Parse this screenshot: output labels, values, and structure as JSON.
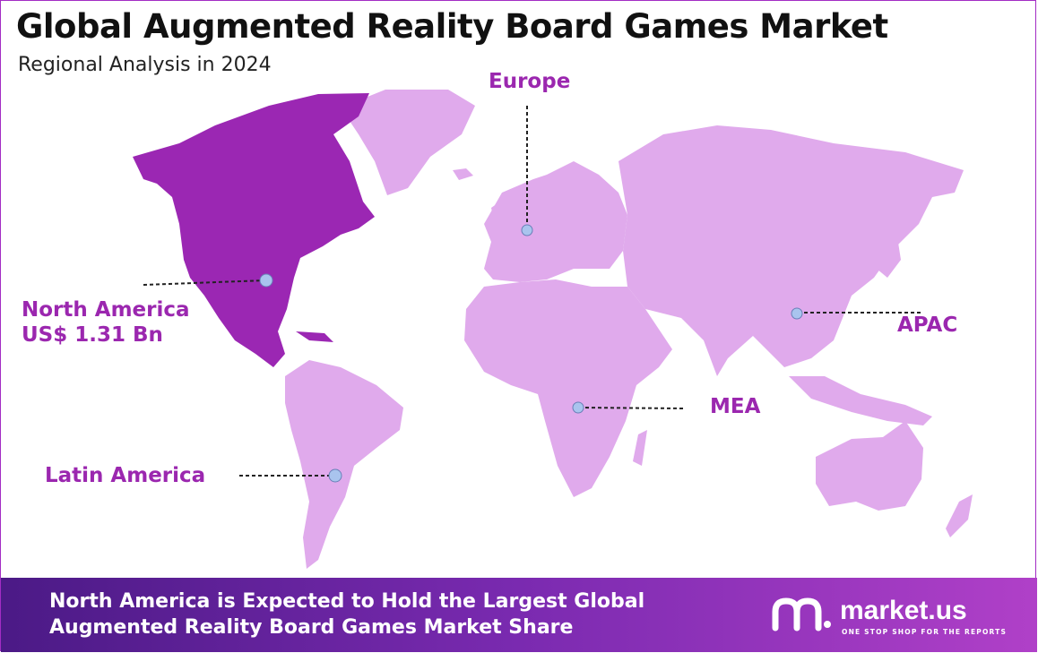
{
  "title": "Global Augmented Reality Board Games Market",
  "subtitle": "Regional Analysis in 2024",
  "colors": {
    "highlight_region": "#9b27b3",
    "other_regions": "#e0aaec",
    "label_text": "#9b27af",
    "marker": "#a9c4ee"
  },
  "regions": {
    "europe": {
      "label": "Europe"
    },
    "north_america": {
      "label": "North America",
      "value": "US$ 1.31 Bn"
    },
    "apac": {
      "label": "APAC"
    },
    "mea": {
      "label": "MEA"
    },
    "latin_america": {
      "label": "Latin America"
    }
  },
  "footer": {
    "line1": "North America is Expected to Hold the Largest Global",
    "line2": "Augmented Reality Board Games Market Share",
    "brand": "market.us",
    "tagline": "ONE STOP SHOP FOR THE REPORTS"
  }
}
